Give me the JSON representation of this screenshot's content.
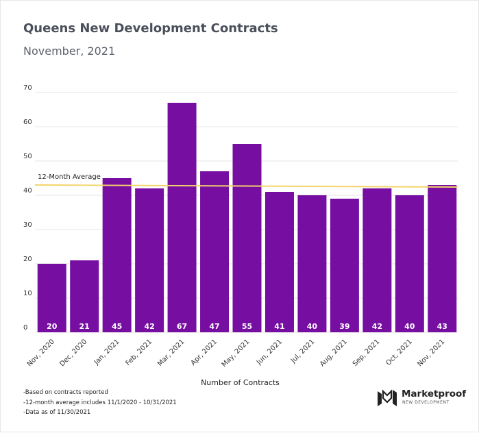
{
  "chart_data": {
    "type": "bar",
    "title": "Queens New Development Contracts",
    "subtitle": "November, 2021",
    "xlabel": "Number of Contracts",
    "ylabel": "",
    "ylim": [
      0,
      70
    ],
    "yticks": [
      "0",
      "10",
      "20",
      "30",
      "40",
      "50",
      "60",
      "70"
    ],
    "grid": true,
    "categories": [
      "Nov, 2020",
      "Dec, 2020",
      "Jan, 2021",
      "Feb, 2021",
      "Mar, 2021",
      "Apr, 2021",
      "May, 2021",
      "Jun, 2021",
      "Jul, 2021",
      "Aug, 2021",
      "Sep, 2021",
      "Oct, 2021",
      "Nov, 2021"
    ],
    "series": [
      {
        "values": [
          20,
          21,
          45,
          42,
          67,
          47,
          55,
          41,
          40,
          39,
          42,
          40,
          43
        ],
        "color": "#760ea1"
      }
    ],
    "data_labels": [
      "20",
      "21",
      "45",
      "42",
      "67",
      "47",
      "55",
      "41",
      "40",
      "39",
      "42",
      "40",
      "43"
    ],
    "average_line": {
      "label": "12-Month Average",
      "start_value": 43.0,
      "end_value": 42.4,
      "color": "#f3d46a"
    }
  },
  "notes": [
    "-Based on contracts reported",
    "-12-month average includes 11/1/2020 - 10/31/2021",
    "-Data as of 11/30/2021"
  ],
  "logo": {
    "name": "Marketproof",
    "tagline": "NEW DEVELOPMENT",
    "icon": "marketproof-logo-icon"
  },
  "colors": {
    "bar": "#760ea1",
    "average": "#f3d46a",
    "grid": "#e4e4e4",
    "title": "#4a4f5a"
  }
}
